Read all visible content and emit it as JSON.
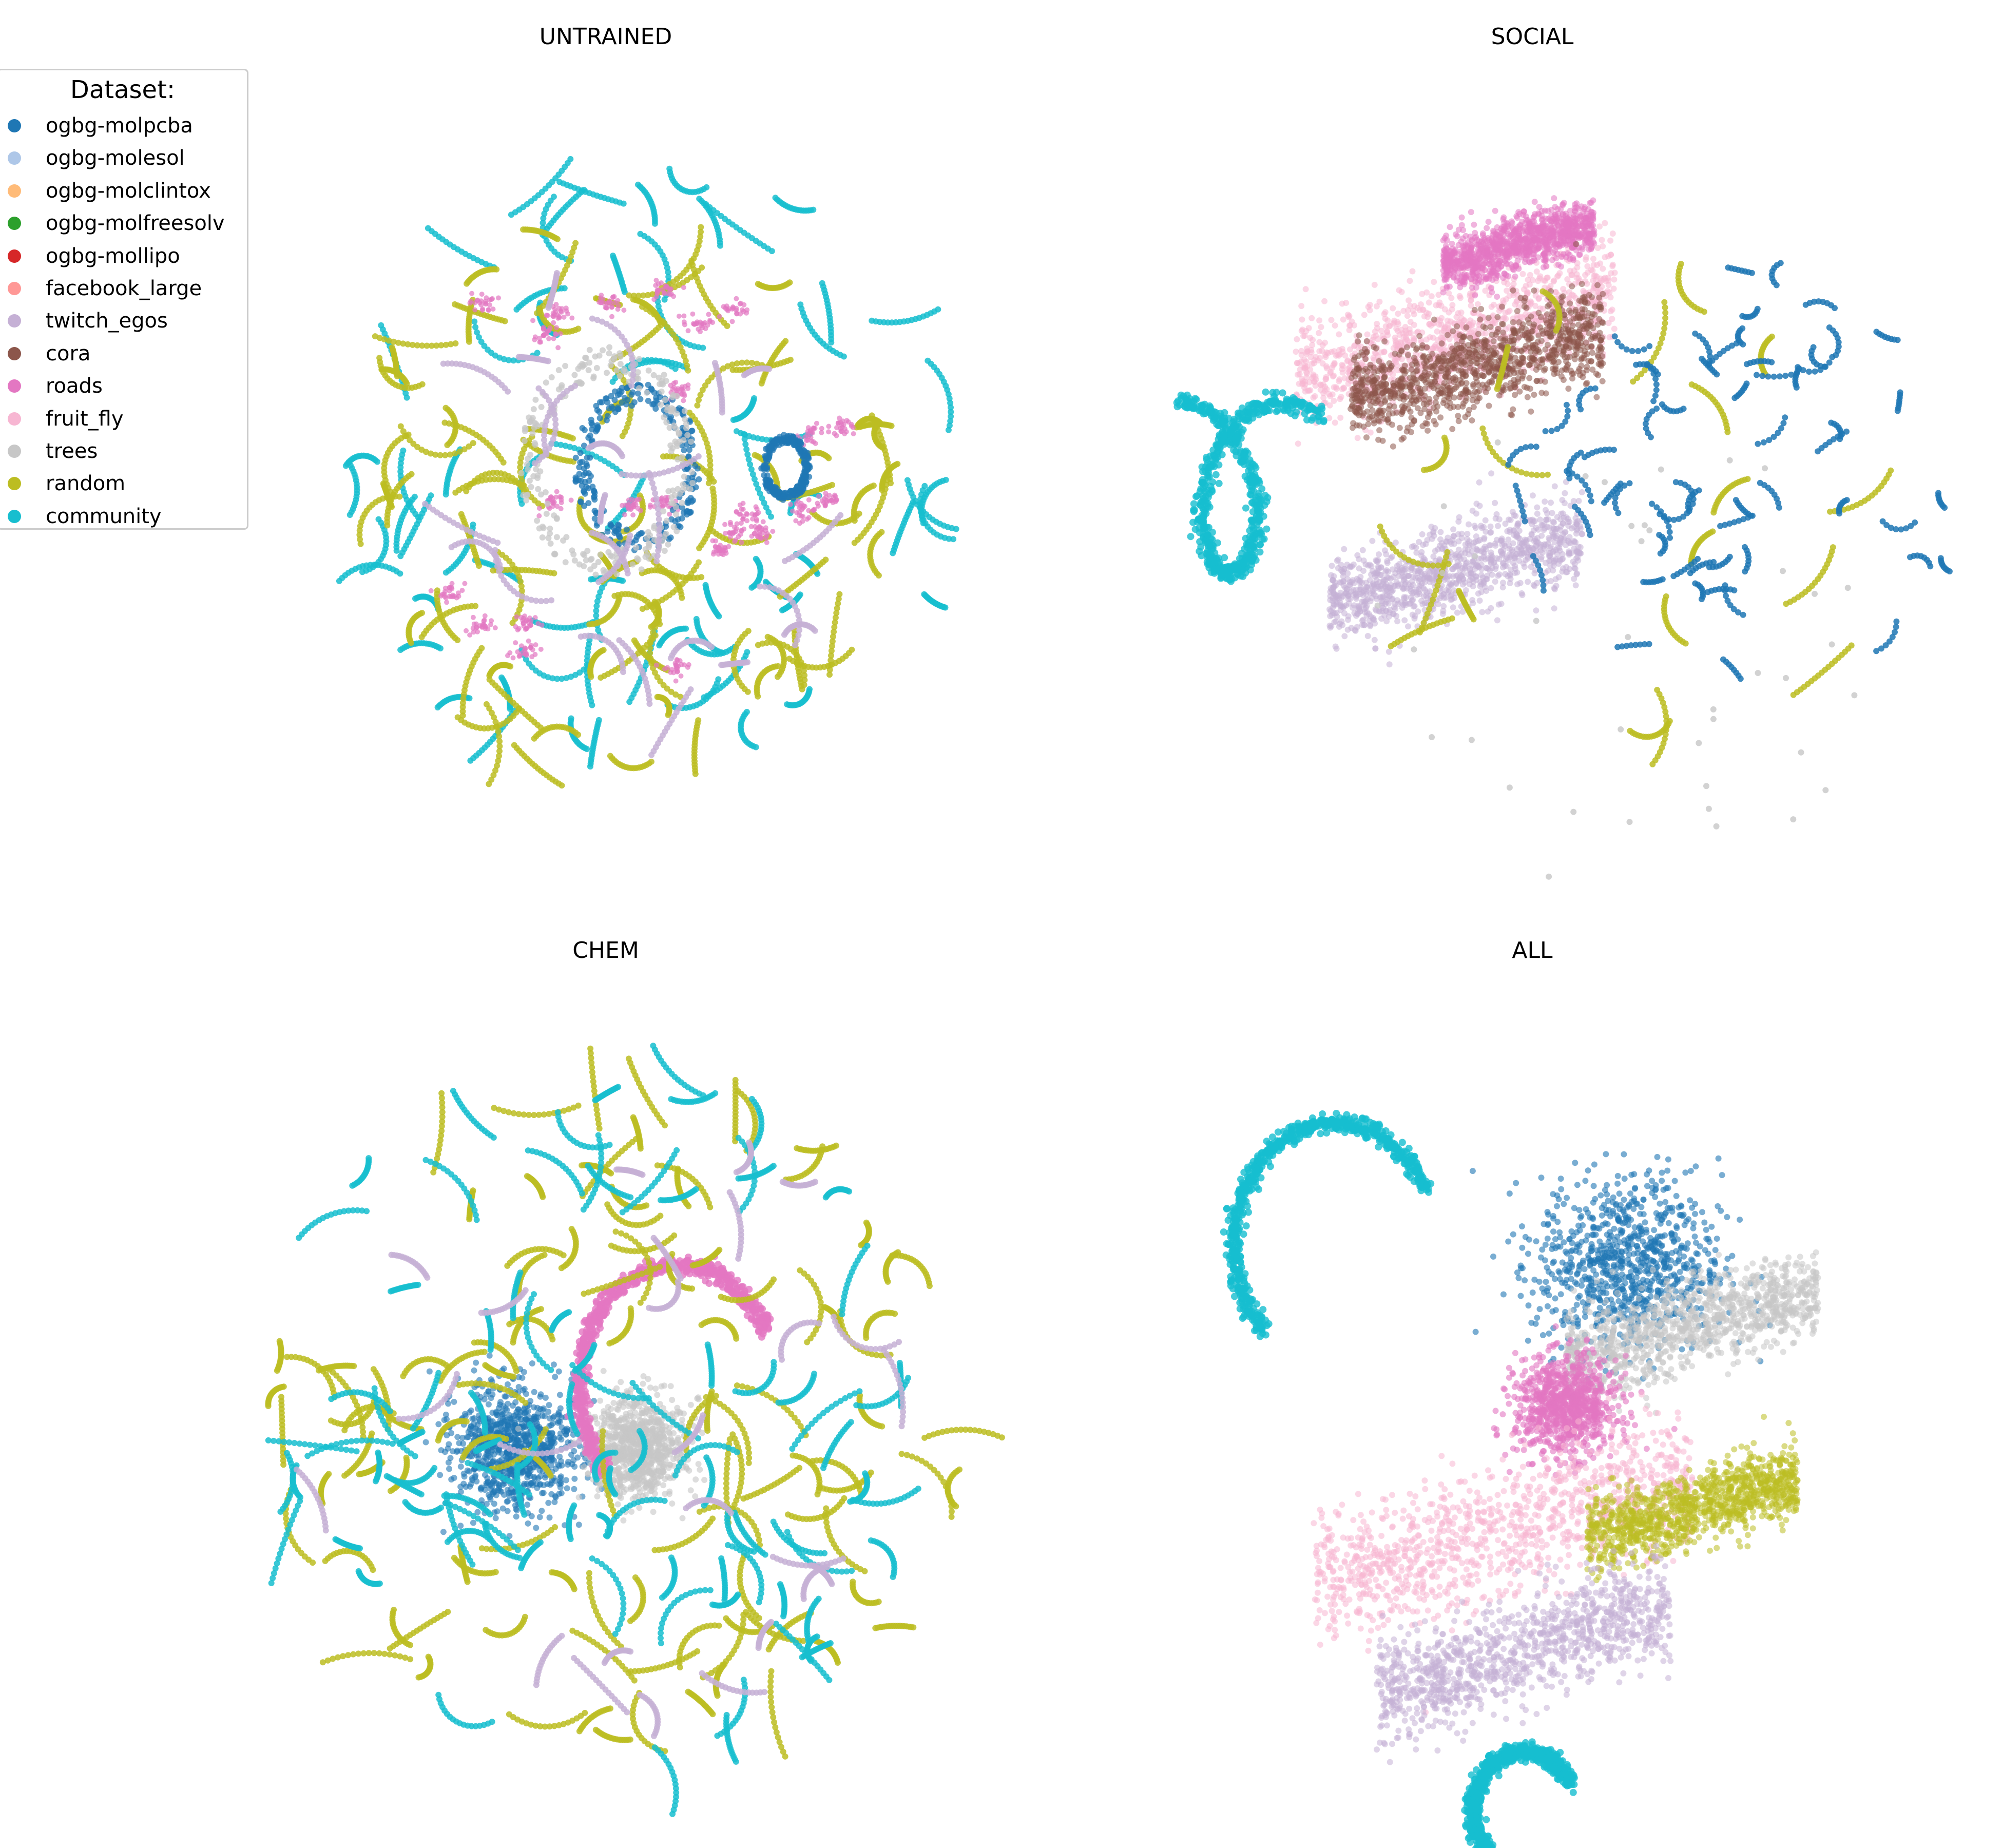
{
  "legend": {
    "title": "Dataset:",
    "entries": [
      {
        "label": "ogbg-molpcba",
        "color": "#1f77b4"
      },
      {
        "label": "ogbg-molesol",
        "color": "#aec7e8"
      },
      {
        "label": "ogbg-molclintox",
        "color": "#ffbb78"
      },
      {
        "label": "ogbg-molfreesolv",
        "color": "#2ca02c"
      },
      {
        "label": "ogbg-mollipo",
        "color": "#d62728"
      },
      {
        "label": "facebook_large",
        "color": "#ff9896"
      },
      {
        "label": "twitch_egos",
        "color": "#c5b0d5"
      },
      {
        "label": "cora",
        "color": "#8c564b"
      },
      {
        "label": "roads",
        "color": "#e377c2"
      },
      {
        "label": "fruit_fly",
        "color": "#f7b6d2"
      },
      {
        "label": "trees",
        "color": "#c7c7c7"
      },
      {
        "label": "random",
        "color": "#bcbd22"
      },
      {
        "label": "community",
        "color": "#17becf"
      }
    ]
  },
  "chart_data": [
    {
      "type": "scatter",
      "title": "UNTRAINED",
      "axes": "off",
      "description_free": true,
      "clusters": [
        {
          "dataset": "community",
          "layout": "scattered-arcs",
          "cx": 0.08,
          "cy": 0.02,
          "spread": 0.8,
          "count": 70
        },
        {
          "dataset": "random",
          "layout": "scattered-arcs",
          "cx": -0.02,
          "cy": -0.02,
          "spread": 0.72,
          "count": 90
        },
        {
          "dataset": "roads",
          "layout": "scattered-blobs",
          "cx": 0.02,
          "cy": 0.05,
          "spread": 0.6,
          "count": 24
        },
        {
          "dataset": "ogbg-molpcba",
          "layout": "ring",
          "cx": 0.03,
          "cy": 0.05,
          "spread": 0.18,
          "count": 6
        },
        {
          "dataset": "ogbg-molpcba",
          "layout": "ring",
          "cx": 0.42,
          "cy": 0.05,
          "spread": 0.07,
          "count": 2
        },
        {
          "dataset": "trees",
          "layout": "ring",
          "cx": -0.05,
          "cy": 0.06,
          "spread": 0.25,
          "count": 6
        },
        {
          "dataset": "twitch_egos",
          "layout": "scattered-arcs",
          "cx": 0.0,
          "cy": 0.0,
          "spread": 0.6,
          "count": 25
        }
      ]
    },
    {
      "type": "scatter",
      "title": "SOCIAL",
      "axes": "off",
      "clusters": [
        {
          "dataset": "fruit_fly",
          "layout": "band",
          "cx": -0.2,
          "cy": 0.38,
          "spread": 0.38,
          "count": 1
        },
        {
          "dataset": "roads",
          "layout": "band",
          "cx": -0.05,
          "cy": 0.6,
          "spread": 0.18,
          "count": 1
        },
        {
          "dataset": "cora",
          "layout": "band",
          "cx": -0.15,
          "cy": 0.3,
          "spread": 0.3,
          "count": 1
        },
        {
          "dataset": "community",
          "layout": "s-curve",
          "cx": -0.86,
          "cy": 0.0,
          "spread": 0.3,
          "count": 1
        },
        {
          "dataset": "twitch_egos",
          "layout": "band",
          "cx": -0.2,
          "cy": -0.2,
          "spread": 0.3,
          "count": 1
        },
        {
          "dataset": "random",
          "layout": "scattered-arcs",
          "cx": 0.2,
          "cy": -0.1,
          "spread": 0.6,
          "count": 20
        },
        {
          "dataset": "ogbg-molpcba",
          "layout": "short-sticks",
          "cx": 0.45,
          "cy": 0.0,
          "spread": 0.55,
          "count": 60
        },
        {
          "dataset": "trees",
          "layout": "scattered-points",
          "cx": 0.2,
          "cy": -0.4,
          "spread": 0.6,
          "count": 40
        }
      ]
    },
    {
      "type": "scatter",
      "title": "CHEM",
      "axes": "off",
      "clusters": [
        {
          "dataset": "ogbg-molpcba",
          "layout": "blob",
          "cx": -0.25,
          "cy": -0.05,
          "spread": 0.15,
          "count": 1
        },
        {
          "dataset": "trees",
          "layout": "blob",
          "cx": 0.05,
          "cy": -0.05,
          "spread": 0.12,
          "count": 1
        },
        {
          "dataset": "roads",
          "layout": "arc",
          "cx": 0.15,
          "cy": 0.1,
          "spread": 0.3,
          "count": 1
        },
        {
          "dataset": "random",
          "layout": "scattered-arcs",
          "cx": 0.0,
          "cy": 0.0,
          "spread": 0.85,
          "count": 110
        },
        {
          "dataset": "community",
          "layout": "scattered-arcs",
          "cx": 0.0,
          "cy": 0.0,
          "spread": 0.9,
          "count": 90
        },
        {
          "dataset": "twitch_egos",
          "layout": "scattered-arcs",
          "cx": 0.0,
          "cy": 0.0,
          "spread": 0.75,
          "count": 25
        }
      ]
    },
    {
      "type": "scatter",
      "title": "ALL",
      "axes": "off",
      "clusters": [
        {
          "dataset": "community",
          "layout": "arc",
          "cx": -0.5,
          "cy": 0.45,
          "spread": 0.3,
          "count": 1
        },
        {
          "dataset": "ogbg-molpcba",
          "layout": "blob",
          "cx": 0.2,
          "cy": 0.4,
          "spread": 0.22,
          "count": 1
        },
        {
          "dataset": "trees",
          "layout": "band",
          "cx": 0.35,
          "cy": 0.25,
          "spread": 0.3,
          "count": 1
        },
        {
          "dataset": "roads",
          "layout": "blob",
          "cx": 0.05,
          "cy": 0.05,
          "spread": 0.12,
          "count": 1
        },
        {
          "dataset": "fruit_fly",
          "layout": "band",
          "cx": -0.1,
          "cy": -0.25,
          "spread": 0.45,
          "count": 1
        },
        {
          "dataset": "random",
          "layout": "band",
          "cx": 0.35,
          "cy": -0.2,
          "spread": 0.25,
          "count": 1
        },
        {
          "dataset": "twitch_egos",
          "layout": "band",
          "cx": -0.05,
          "cy": -0.55,
          "spread": 0.35,
          "count": 1
        },
        {
          "dataset": "community",
          "layout": "arc",
          "cx": -0.05,
          "cy": -0.95,
          "spread": 0.15,
          "count": 1
        }
      ]
    }
  ]
}
